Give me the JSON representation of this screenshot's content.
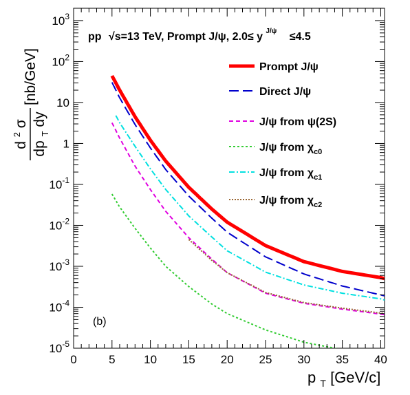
{
  "chart_data": {
    "type": "line",
    "title": {
      "system": "pp",
      "energy": "√s=13 TeV,",
      "sample": "Prompt J/ψ, 2.0≤ y",
      "sup": "J/ψ",
      "upper": "≤4.5"
    },
    "annotation": "(b)",
    "xlabel": {
      "main": "p",
      "sub": "T",
      "rest": "[GeV/c]"
    },
    "ylabel": {
      "num": "d",
      "num_sup": "2",
      "num_rest": "σ",
      "den": "dp",
      "den_sub": "T",
      "den_rest": "dy",
      "unit": "[nb/GeV]"
    },
    "xlim": [
      0,
      40.5
    ],
    "ylim": [
      1e-05,
      2000
    ],
    "yscale": "log",
    "x_ticks": [
      "0",
      "5",
      "10",
      "15",
      "20",
      "25",
      "30",
      "35",
      "40"
    ],
    "y_ticks": [
      {
        "value": 1e-05,
        "base": "10",
        "exp": "-5"
      },
      {
        "value": 0.0001,
        "base": "10",
        "exp": "-4"
      },
      {
        "value": 0.001,
        "base": "10",
        "exp": "-3"
      },
      {
        "value": 0.01,
        "base": "10",
        "exp": "-2"
      },
      {
        "value": 0.1,
        "base": "10",
        "exp": "-1"
      },
      {
        "value": 1,
        "base": "1",
        "exp": ""
      },
      {
        "value": 10,
        "base": "10",
        "exp": ""
      },
      {
        "value": 100,
        "base": "10",
        "exp": "2"
      },
      {
        "value": 1000,
        "base": "10",
        "exp": "3"
      }
    ],
    "legend_position": "top-right",
    "series": [
      {
        "name": "Prompt J/ψ",
        "legend": {
          "main": "Prompt J/ψ",
          "sub": ""
        },
        "color": "#ff0000",
        "dash": "",
        "width": 5,
        "x": [
          5,
          6,
          8,
          10,
          12,
          15,
          18,
          20,
          25,
          30,
          35,
          40,
          40.5
        ],
        "y": [
          45,
          20,
          4.5,
          1.2,
          0.37,
          0.085,
          0.025,
          0.012,
          0.0032,
          0.0013,
          0.00075,
          0.00053,
          0.0005
        ]
      },
      {
        "name": "Direct J/ψ",
        "legend": {
          "main": "Direct J/ψ",
          "sub": ""
        },
        "color": "#0000cc",
        "dash": "14,6",
        "width": 2,
        "x": [
          5,
          6,
          8,
          10,
          12,
          15,
          18,
          20,
          25,
          30,
          35,
          40,
          40.5
        ],
        "y": [
          31,
          13,
          2.9,
          0.78,
          0.23,
          0.052,
          0.015,
          0.0068,
          0.0017,
          0.00065,
          0.00033,
          0.0002,
          0.00019
        ]
      },
      {
        "name": "J/ψ from ψ(2S)",
        "legend": {
          "main": "J/ψ from ψ(2S)",
          "sub": ""
        },
        "color": "#e000e0",
        "dash": "6,4",
        "width": 2,
        "x": [
          5,
          6,
          8,
          10,
          12,
          15,
          18,
          20,
          25,
          30,
          35,
          40,
          40.5
        ],
        "y": [
          3.2,
          1.35,
          0.28,
          0.075,
          0.022,
          0.005,
          0.0015,
          0.0007,
          0.00022,
          0.000125,
          9e-05,
          6.8e-05,
          6.6e-05
        ]
      },
      {
        "name": "J/ψ from χc0",
        "legend": {
          "main": "J/ψ from χ",
          "sub": "c0"
        },
        "color": "#33cc33",
        "dash": "3,3",
        "width": 2,
        "x": [
          5,
          6,
          8,
          10,
          12,
          15,
          18,
          20,
          25,
          30,
          35
        ],
        "y": [
          0.058,
          0.028,
          0.0085,
          0.0028,
          0.001,
          0.00032,
          0.00012,
          7e-05,
          2.8e-05,
          1.4e-05,
          9.2e-06
        ]
      },
      {
        "name": "J/ψ from χc1",
        "legend": {
          "main": "J/ψ from χ",
          "sub": "c1"
        },
        "color": "#00e0e0",
        "dash": "8,3,2,3",
        "width": 2,
        "x": [
          5.5,
          6,
          8,
          10,
          12,
          15,
          18,
          20,
          25,
          30,
          35,
          40,
          40.5
        ],
        "y": [
          4.8,
          3.2,
          0.85,
          0.24,
          0.075,
          0.017,
          0.0052,
          0.0024,
          0.00072,
          0.00035,
          0.00022,
          0.00016,
          0.00015
        ]
      },
      {
        "name": "J/ψ from χc2",
        "legend": {
          "main": "J/ψ from χ",
          "sub": "c2"
        },
        "color": "#996633",
        "dash": "2,2",
        "width": 2,
        "x": [
          15,
          18,
          20,
          25,
          30,
          35,
          40,
          40.5
        ],
        "y": [
          0.0045,
          0.0014,
          0.0007,
          0.00023,
          0.00013,
          9.5e-05,
          7.2e-05,
          7e-05
        ]
      }
    ]
  }
}
